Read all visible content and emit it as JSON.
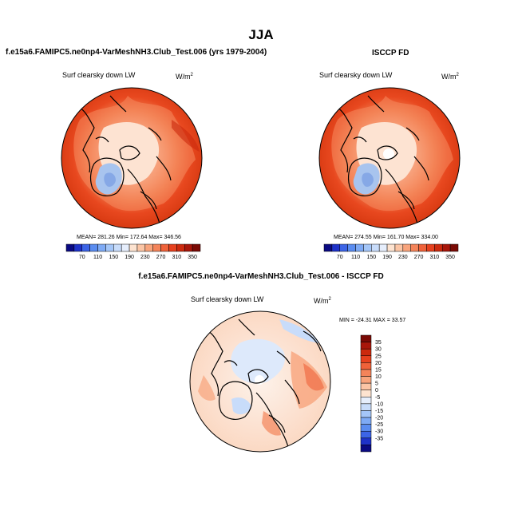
{
  "main_title": "JJA",
  "panels": {
    "model": {
      "title": "f.e15a6.FAMIPC5.ne0np4-VarMeshNH3.Club_Test.006 (yrs 1979-2004)",
      "variable": "Surf clearsky down LW",
      "units_base": "W/m",
      "units_exp": "2",
      "stats": "MEAN= 281.26  Min= 172.64  Max= 346.56"
    },
    "obs": {
      "title": "ISCCP FD",
      "variable": "Surf clearsky down LW",
      "units_base": "W/m",
      "units_exp": "2",
      "stats": "MEAN= 274.55  Min= 161.70  Max= 334.00"
    },
    "diff": {
      "title": "f.e15a6.FAMIPC5.ne0np4-VarMeshNH3.Club_Test.006 - ISCCP FD",
      "variable": "Surf clearsky down LW",
      "units_base": "W/m",
      "units_exp": "2",
      "stats": "MIN = -24.31 MAX =  33.57"
    }
  },
  "colorbar_horizontal": {
    "labels": [
      "70",
      "110",
      "150",
      "190",
      "230",
      "270",
      "310",
      "350"
    ],
    "colors": [
      "#0a0a82",
      "#1e32c8",
      "#3c64e6",
      "#5a8cf0",
      "#7eaaf5",
      "#a4c6f8",
      "#c8dcfa",
      "#e6eefc",
      "#fde3d0",
      "#fbc5a5",
      "#f8a47c",
      "#f4845a",
      "#ef623a",
      "#e6411e",
      "#cc2a0e",
      "#a8160a",
      "#7a0a05"
    ]
  },
  "colorbar_vertical": {
    "labels": [
      "35",
      "30",
      "25",
      "20",
      "15",
      "10",
      "5",
      "0",
      "-5",
      "-10",
      "-15",
      "-20",
      "-25",
      "-30",
      "-35"
    ],
    "colors": [
      "#7a0a05",
      "#a8160a",
      "#cc2a0e",
      "#e6411e",
      "#ef623a",
      "#f4845a",
      "#f8a47c",
      "#fbc5a5",
      "#fde3d0",
      "#e6eefc",
      "#c8dcfa",
      "#a4c6f8",
      "#7eaaf5",
      "#5a8cf0",
      "#3c64e6",
      "#1e32c8",
      "#0a0a82"
    ]
  },
  "colors": {
    "warm_outer": "#e8481f",
    "warm_mid": "#f07a4c",
    "warm_inner": "#f9c3a6",
    "arctic_pale": "#fde6d6",
    "greenland_blue": "#a8c4ee",
    "diff_bg": "#fce2d2"
  }
}
